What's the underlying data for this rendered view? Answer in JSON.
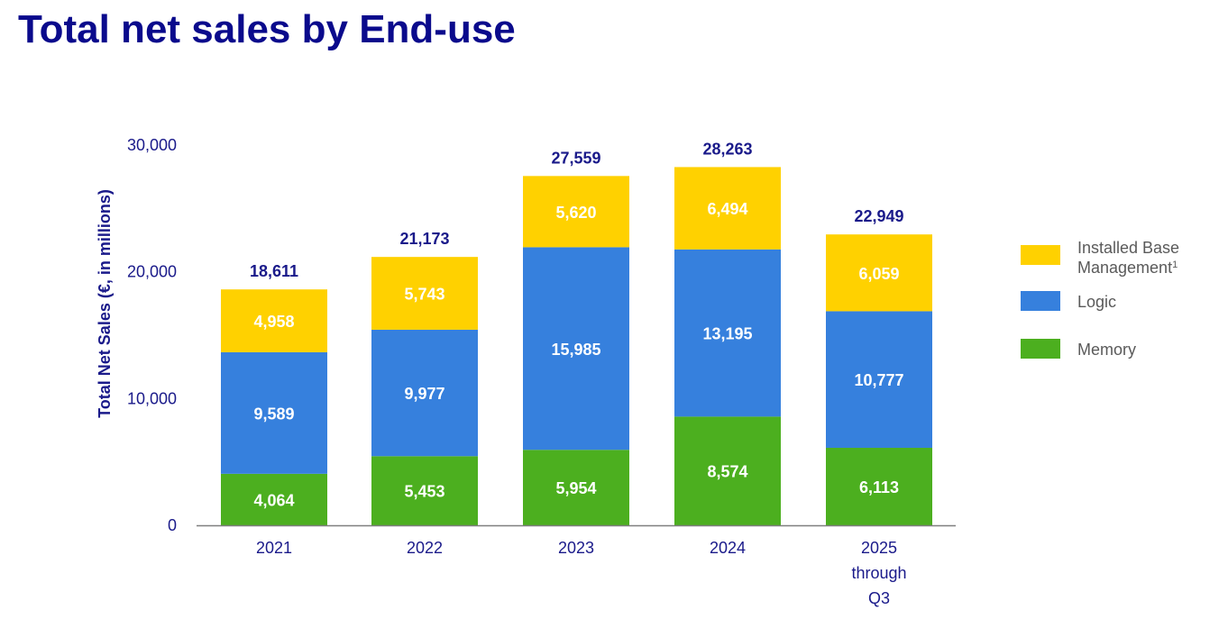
{
  "page": {
    "title": "Total net sales by End-use"
  },
  "chart_data": {
    "type": "bar",
    "stacked": true,
    "title": "Total net sales by End-use",
    "ylabel": "Total Net Sales (€, in millions)",
    "xlabel": "",
    "ylim": [
      0,
      30000
    ],
    "yticks": [
      0,
      10000,
      20000,
      30000
    ],
    "ytick_labels": [
      "0",
      "10,000",
      "20,000",
      "30,000"
    ],
    "categories": [
      "2021",
      "2022",
      "2023",
      "2024",
      "2025 through Q3"
    ],
    "category_lines": [
      [
        "2021"
      ],
      [
        "2022"
      ],
      [
        "2023"
      ],
      [
        "2024"
      ],
      [
        "2025",
        "through",
        "Q3"
      ]
    ],
    "series": [
      {
        "name": "Memory",
        "color": "#4caf1f",
        "values": [
          4064,
          5453,
          5954,
          8574,
          6113
        ],
        "labels": [
          "4,064",
          "5,453",
          "5,954",
          "8,574",
          "6,113"
        ]
      },
      {
        "name": "Logic",
        "color": "#3680dd",
        "values": [
          9589,
          9977,
          15985,
          13195,
          10777
        ],
        "labels": [
          "9,589",
          "9,977",
          "15,985",
          "13,195",
          "10,777"
        ]
      },
      {
        "name": "Installed Base Management",
        "superscript": "1",
        "color": "#ffd100",
        "values": [
          4958,
          5743,
          5620,
          6494,
          6059
        ],
        "labels": [
          "4,958",
          "5,743",
          "5,620",
          "6,494",
          "6,059"
        ]
      }
    ],
    "totals": [
      18611,
      21173,
      27559,
      28263,
      22949
    ],
    "total_labels": [
      "18,611",
      "21,173",
      "27,559",
      "28,263",
      "22,949"
    ],
    "legend": {
      "placement": "right",
      "entries": [
        {
          "lines": [
            "Installed Base",
            "Management"
          ],
          "superscript": "1",
          "color": "#ffd100"
        },
        {
          "lines": [
            "Logic"
          ],
          "color": "#3680dd"
        },
        {
          "lines": [
            "Memory"
          ],
          "color": "#4caf1f"
        }
      ]
    },
    "grid": false
  }
}
